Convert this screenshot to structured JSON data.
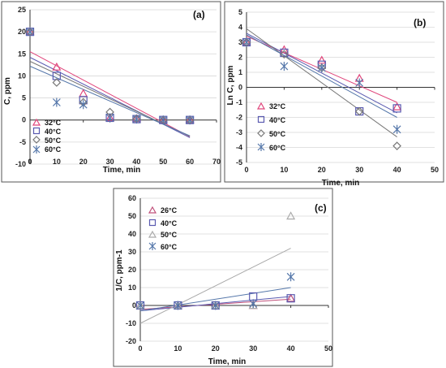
{
  "colors": {
    "32C": "#e0457b",
    "26C": "#c0507a",
    "40C": "#5a5ab0",
    "50C": "#777777",
    "60C": "#5577aa"
  },
  "chart_data": [
    {
      "type": "scatter",
      "panel_label": "(a)",
      "xlabel": "Time, min",
      "ylabel": "C, ppm",
      "xlim": [
        0,
        70
      ],
      "ylim": [
        -10,
        25
      ],
      "xticks": [
        0,
        10,
        20,
        30,
        40,
        50,
        60,
        70
      ],
      "yticks": [
        -10,
        -5,
        0,
        5,
        10,
        15,
        20,
        25
      ],
      "legend_position": "bottom-left",
      "series": [
        {
          "name": "32°C",
          "marker": "triangle",
          "color": "#e0457b",
          "x": [
            0,
            10,
            20,
            30,
            40,
            50,
            60
          ],
          "y": [
            20,
            12,
            6,
            0.5,
            0.3,
            0,
            0
          ],
          "fit": [
            [
              0,
              15.5
            ],
            [
              60,
              -3.8
            ]
          ]
        },
        {
          "name": "40°C",
          "marker": "square",
          "color": "#5a5ab0",
          "x": [
            0,
            10,
            20,
            30,
            40,
            50,
            60
          ],
          "y": [
            20,
            10,
            4.5,
            0.5,
            0.2,
            0,
            0
          ],
          "fit": [
            [
              0,
              14.2
            ],
            [
              60,
              -4
            ]
          ]
        },
        {
          "name": "50°C",
          "marker": "diamond",
          "color": "#777777",
          "x": [
            0,
            10,
            20,
            30,
            40,
            50,
            60
          ],
          "y": [
            20,
            8.5,
            4,
            1.8,
            0.3,
            0,
            0
          ],
          "fit": [
            [
              0,
              13.3
            ],
            [
              60,
              -3.7
            ]
          ]
        },
        {
          "name": "60°C",
          "marker": "star",
          "color": "#5577aa",
          "x": [
            0,
            10,
            20,
            30,
            40,
            50,
            60
          ],
          "y": [
            20,
            4,
            3.5,
            0.5,
            0.2,
            0,
            0
          ],
          "fit": [
            [
              0,
              12.2
            ],
            [
              60,
              -3.6
            ]
          ]
        }
      ]
    },
    {
      "type": "scatter",
      "panel_label": "(b)",
      "xlabel": "Time, min",
      "ylabel": "Ln C, ppm",
      "xlim": [
        0,
        50
      ],
      "ylim": [
        -5,
        5
      ],
      "xticks": [
        0,
        10,
        20,
        30,
        40,
        50
      ],
      "yticks": [
        -5,
        -4,
        -3,
        -2,
        -1,
        0,
        1,
        2,
        3,
        4,
        5
      ],
      "legend_position": "bottom-left",
      "series": [
        {
          "name": "32°C",
          "marker": "triangle",
          "color": "#e0457b",
          "x": [
            0,
            10,
            20,
            30,
            40
          ],
          "y": [
            3,
            2.5,
            1.8,
            0.6,
            -1.3
          ],
          "fit": [
            [
              0,
              3.4
            ],
            [
              40,
              -1.0
            ]
          ]
        },
        {
          "name": "40°C",
          "marker": "square",
          "color": "#5a5ab0",
          "x": [
            0,
            10,
            20,
            30,
            40
          ],
          "y": [
            3,
            2.3,
            1.5,
            -1.6,
            -1.4
          ],
          "fit": [
            [
              0,
              3.6
            ],
            [
              40,
              -1.7
            ]
          ]
        },
        {
          "name": "50°C",
          "marker": "diamond",
          "color": "#777777",
          "x": [
            0,
            10,
            20,
            30,
            40
          ],
          "y": [
            3,
            2.2,
            1.3,
            -1.6,
            -3.9
          ],
          "fit": [
            [
              0,
              3.9
            ],
            [
              40,
              -3.3
            ]
          ]
        },
        {
          "name": "60°C",
          "marker": "star",
          "color": "#5577aa",
          "x": [
            0,
            10,
            20,
            30,
            40
          ],
          "y": [
            3,
            1.4,
            1.3,
            0.3,
            -2.8
          ],
          "fit": [
            [
              0,
              3.5
            ],
            [
              40,
              -2.0
            ]
          ]
        }
      ]
    },
    {
      "type": "scatter",
      "panel_label": "(c)",
      "xlabel": "Time, min",
      "ylabel": "1/C, ppm-1",
      "xlim": [
        0,
        50
      ],
      "ylim": [
        -20,
        60
      ],
      "xticks": [
        0,
        10,
        20,
        30,
        40,
        50
      ],
      "yticks": [
        -20,
        -10,
        0,
        10,
        20,
        30,
        40,
        50,
        60
      ],
      "legend_position": "top-left",
      "series": [
        {
          "name": "26°C",
          "marker": "triangle",
          "color": "#c0507a",
          "x": [
            0,
            10,
            20,
            30,
            40
          ],
          "y": [
            0,
            0,
            0,
            0,
            4
          ],
          "fit": [
            [
              0,
              -2.2
            ],
            [
              40,
              3.5
            ]
          ]
        },
        {
          "name": "40°C",
          "marker": "square",
          "color": "#5a5ab0",
          "x": [
            0,
            10,
            20,
            30,
            40
          ],
          "y": [
            0,
            0,
            0,
            5,
            4
          ],
          "fit": [
            [
              0,
              -3
            ],
            [
              40,
              5
            ]
          ]
        },
        {
          "name": "50°C",
          "marker": "triangle-open",
          "color": "#aaaaaa",
          "x": [
            0,
            10,
            20,
            30,
            40
          ],
          "y": [
            0,
            0,
            0,
            0,
            50
          ],
          "fit": [
            [
              0,
              -10
            ],
            [
              40,
              32
            ]
          ]
        },
        {
          "name": "60°C",
          "marker": "star",
          "color": "#5577aa",
          "x": [
            0,
            10,
            20,
            30,
            40
          ],
          "y": [
            0,
            0,
            0,
            1,
            16
          ],
          "fit": [
            [
              0,
              -3
            ],
            [
              40,
              10
            ]
          ]
        }
      ]
    }
  ]
}
